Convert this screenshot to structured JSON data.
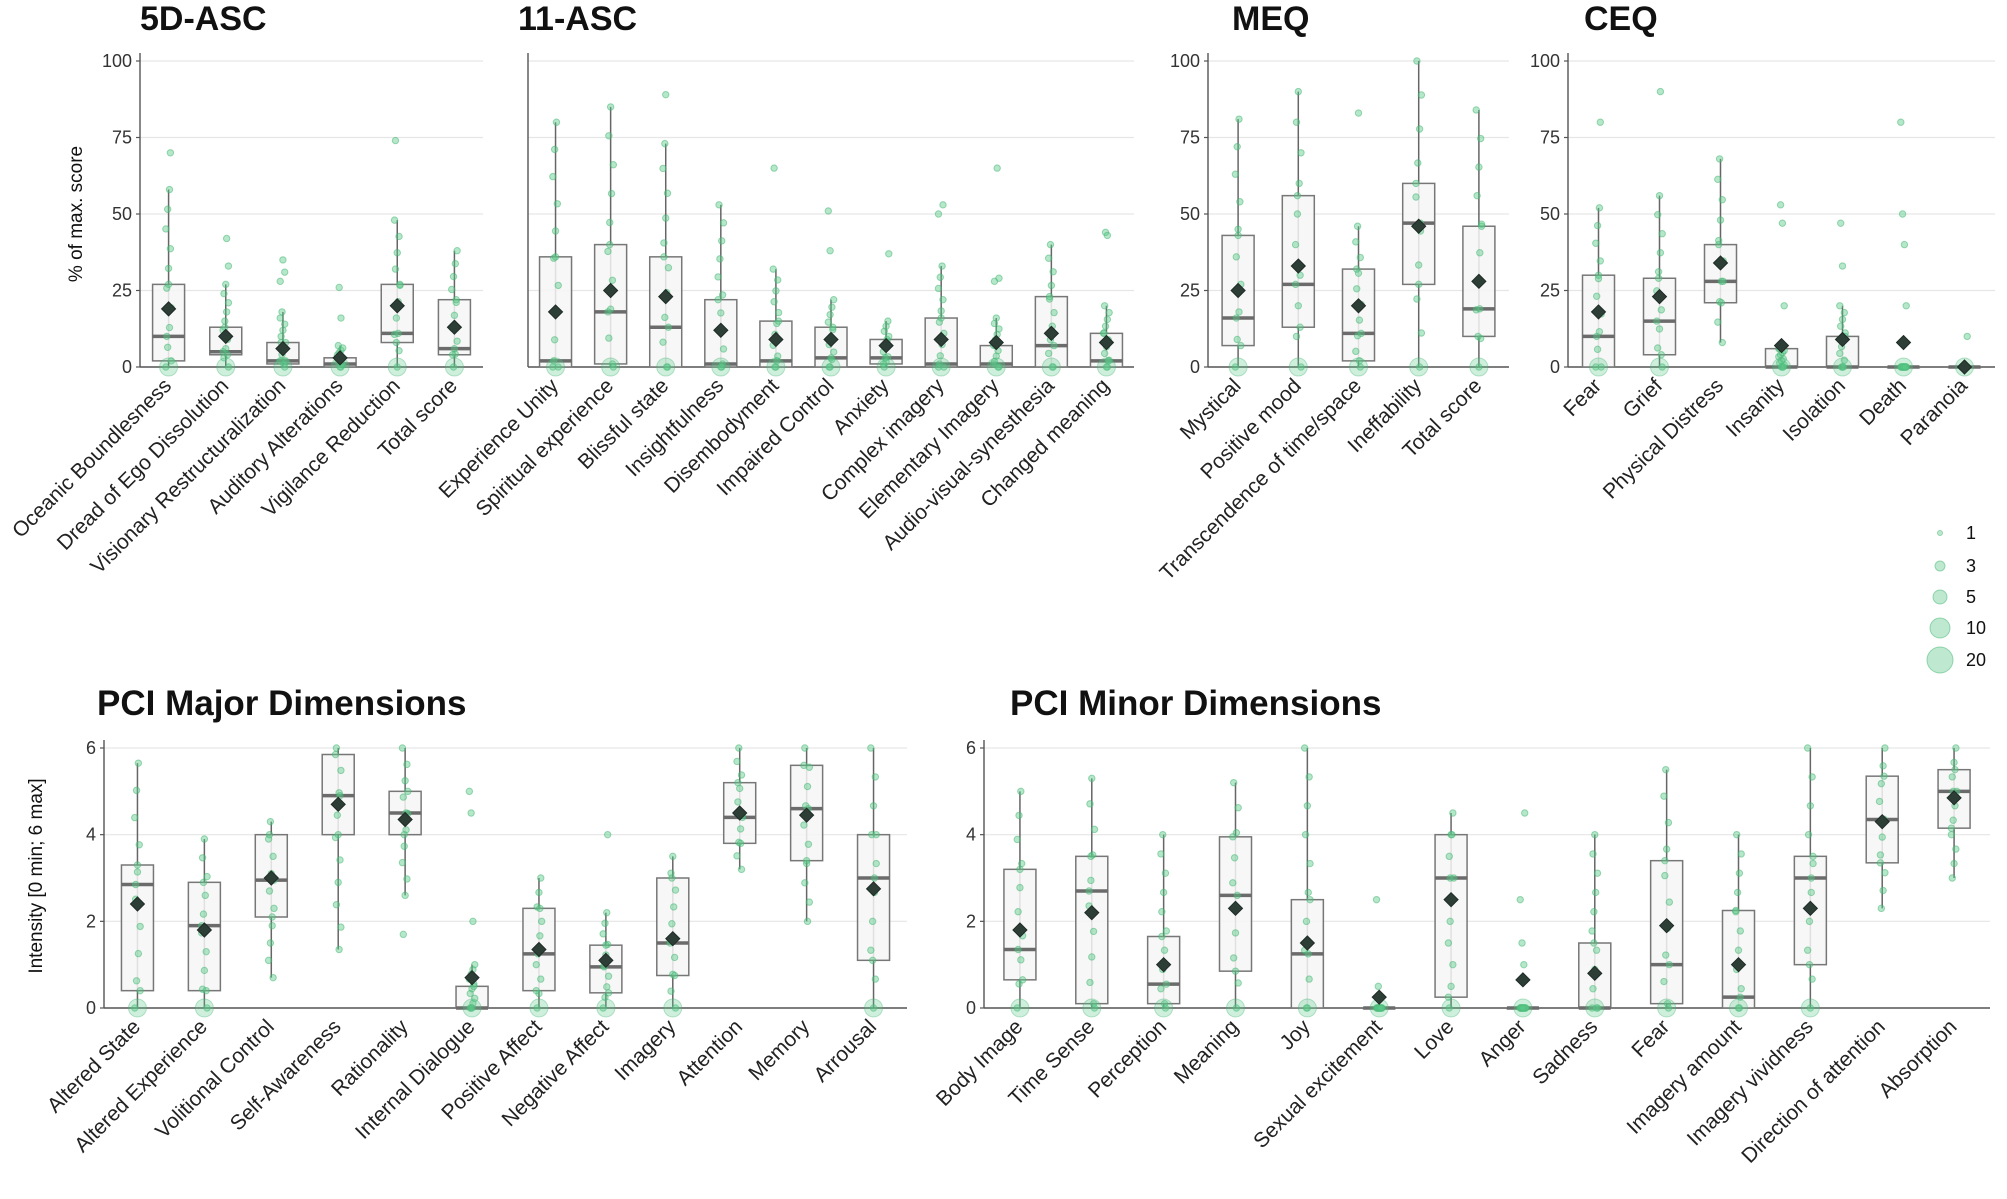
{
  "figure": {
    "legend": {
      "sizes": [
        1,
        3,
        5,
        10,
        20
      ],
      "labels": [
        "1",
        "3",
        "5",
        "10",
        "20"
      ]
    }
  },
  "chart_data": [
    {
      "type": "box",
      "title": "5D-ASC",
      "ylabel": "% of max. score",
      "ylim": [
        0,
        100
      ],
      "yticks": [
        0,
        25,
        50,
        75,
        100
      ],
      "categories": [
        "Oceanic Boundlesness",
        "Dread of Ego Dissolution",
        "Visionary Restructuralization",
        "Auditory Alterations",
        "Vigilance Reduction",
        "Total score"
      ],
      "boxes": [
        {
          "q1": 2,
          "median": 10,
          "q3": 27,
          "wlo": 0,
          "whi": 58,
          "mean": 19
        },
        {
          "q1": 4,
          "median": 5,
          "q3": 13,
          "wlo": 0,
          "whi": 27,
          "mean": 10
        },
        {
          "q1": 1,
          "median": 2,
          "q3": 8,
          "wlo": 0,
          "whi": 18,
          "mean": 6
        },
        {
          "q1": 0,
          "median": 1,
          "q3": 3,
          "wlo": 0,
          "whi": 7,
          "mean": 3
        },
        {
          "q1": 8,
          "median": 11,
          "q3": 27,
          "wlo": 0,
          "whi": 48,
          "mean": 20
        },
        {
          "q1": 4,
          "median": 6,
          "q3": 22,
          "wlo": 0,
          "whi": 38,
          "mean": 13
        }
      ],
      "outliers": [
        [
          70
        ],
        [
          42,
          33
        ],
        [
          35,
          31,
          28
        ],
        [
          26,
          16
        ],
        [
          74
        ],
        []
      ]
    },
    {
      "type": "box",
      "title": "11-ASC",
      "ylim": [
        0,
        100
      ],
      "yticks": [
        0,
        25,
        50,
        75,
        100
      ],
      "categories": [
        "Experience Unity",
        "Spiritual experience",
        "Blissful state",
        "Insightfulness",
        "Disembodyment",
        "Impaired Control",
        "Anxiety",
        "Complex imagery",
        "Elementary Imagery",
        "Audio-visual-synesthesia",
        "Changed meaning"
      ],
      "boxes": [
        {
          "q1": 0,
          "median": 2,
          "q3": 36,
          "wlo": 0,
          "whi": 80,
          "mean": 18
        },
        {
          "q1": 1,
          "median": 18,
          "q3": 40,
          "wlo": 0,
          "whi": 85,
          "mean": 25
        },
        {
          "q1": 0,
          "median": 13,
          "q3": 36,
          "wlo": 0,
          "whi": 73,
          "mean": 23
        },
        {
          "q1": 0,
          "median": 1,
          "q3": 22,
          "wlo": 0,
          "whi": 53,
          "mean": 12
        },
        {
          "q1": 0,
          "median": 2,
          "q3": 15,
          "wlo": 0,
          "whi": 32,
          "mean": 9
        },
        {
          "q1": 0,
          "median": 3,
          "q3": 13,
          "wlo": 0,
          "whi": 22,
          "mean": 9
        },
        {
          "q1": 1,
          "median": 3,
          "q3": 9,
          "wlo": 0,
          "whi": 15,
          "mean": 7
        },
        {
          "q1": 0,
          "median": 1,
          "q3": 16,
          "wlo": 0,
          "whi": 33,
          "mean": 9
        },
        {
          "q1": 0,
          "median": 1,
          "q3": 7,
          "wlo": 0,
          "whi": 16,
          "mean": 8
        },
        {
          "q1": 0,
          "median": 7,
          "q3": 23,
          "wlo": 0,
          "whi": 40,
          "mean": 11
        },
        {
          "q1": 0,
          "median": 2,
          "q3": 11,
          "wlo": 0,
          "whi": 20,
          "mean": 8
        }
      ],
      "outliers": [
        [],
        [],
        [
          89
        ],
        [],
        [
          65
        ],
        [
          51,
          38
        ],
        [
          37
        ],
        [
          53,
          50
        ],
        [
          65,
          29,
          28
        ],
        [],
        [
          44,
          43
        ]
      ]
    },
    {
      "type": "box",
      "title": "MEQ",
      "ylim": [
        0,
        100
      ],
      "yticks": [
        0,
        25,
        50,
        75,
        100
      ],
      "categories": [
        "Mystical",
        "Positive mood",
        "Transcendence of time/space",
        "Ineffability",
        "Total score"
      ],
      "boxes": [
        {
          "q1": 7,
          "median": 16,
          "q3": 43,
          "wlo": 0,
          "whi": 81,
          "mean": 25
        },
        {
          "q1": 13,
          "median": 27,
          "q3": 56,
          "wlo": 0,
          "whi": 90,
          "mean": 33
        },
        {
          "q1": 2,
          "median": 11,
          "q3": 32,
          "wlo": 0,
          "whi": 46,
          "mean": 20
        },
        {
          "q1": 27,
          "median": 47,
          "q3": 60,
          "wlo": 0,
          "whi": 100,
          "mean": 46
        },
        {
          "q1": 10,
          "median": 19,
          "q3": 46,
          "wlo": 0,
          "whi": 84,
          "mean": 28
        }
      ],
      "outliers": [
        [],
        [],
        [
          83
        ],
        [],
        []
      ]
    },
    {
      "type": "box",
      "title": "CEQ",
      "ylim": [
        0,
        100
      ],
      "yticks": [
        0,
        25,
        50,
        75,
        100
      ],
      "categories": [
        "Fear",
        "Grief",
        "Physical Distress",
        "Insanity",
        "Isolation",
        "Death",
        "Paranoia"
      ],
      "boxes": [
        {
          "q1": 0,
          "median": 10,
          "q3": 30,
          "wlo": 0,
          "whi": 52,
          "mean": 18
        },
        {
          "q1": 4,
          "median": 15,
          "q3": 29,
          "wlo": 0,
          "whi": 56,
          "mean": 23
        },
        {
          "q1": 21,
          "median": 28,
          "q3": 40,
          "wlo": 8,
          "whi": 68,
          "mean": 34
        },
        {
          "q1": 0,
          "median": 0,
          "q3": 6,
          "wlo": 0,
          "whi": 6,
          "mean": 7
        },
        {
          "q1": 0,
          "median": 0,
          "q3": 10,
          "wlo": 0,
          "whi": 20,
          "mean": 9
        },
        {
          "q1": 0,
          "median": 0,
          "q3": 0,
          "wlo": 0,
          "whi": 0,
          "mean": 8
        },
        {
          "q1": 0,
          "median": 0,
          "q3": 0,
          "wlo": 0,
          "whi": 0,
          "mean": 0
        }
      ],
      "outliers": [
        [
          80
        ],
        [
          90
        ],
        [],
        [
          53,
          47,
          20
        ],
        [
          47,
          33
        ],
        [
          80,
          50,
          40,
          20
        ],
        [
          10
        ]
      ]
    },
    {
      "type": "box",
      "title": "PCI Major Dimensions",
      "ylabel": "Intensity [0 min; 6 max]",
      "ylim": [
        0,
        6
      ],
      "yticks": [
        0,
        2,
        4,
        6
      ],
      "categories": [
        "Altered State",
        "Altered Experience",
        "Volitional Control",
        "Self-Awareness",
        "Rationality",
        "Internal Dialogue",
        "Positive Affect",
        "Negative Affect",
        "Imagery",
        "Attention",
        "Memory",
        "Arrousal"
      ],
      "boxes": [
        {
          "q1": 0.4,
          "median": 2.85,
          "q3": 3.3,
          "wlo": 0,
          "whi": 5.65,
          "mean": 2.4
        },
        {
          "q1": 0.4,
          "median": 1.9,
          "q3": 2.9,
          "wlo": 0,
          "whi": 3.9,
          "mean": 1.8
        },
        {
          "q1": 2.1,
          "median": 2.95,
          "q3": 4.0,
          "wlo": 0.7,
          "whi": 4.3,
          "mean": 3.0
        },
        {
          "q1": 4.0,
          "median": 4.9,
          "q3": 5.85,
          "wlo": 1.35,
          "whi": 6.0,
          "mean": 4.7
        },
        {
          "q1": 4.0,
          "median": 4.5,
          "q3": 5.0,
          "wlo": 2.6,
          "whi": 6.0,
          "mean": 4.35
        },
        {
          "q1": 0,
          "median": 0,
          "q3": 0.5,
          "wlo": 0,
          "whi": 1.0,
          "mean": 0.7
        },
        {
          "q1": 0.4,
          "median": 1.25,
          "q3": 2.3,
          "wlo": 0,
          "whi": 3.0,
          "mean": 1.35
        },
        {
          "q1": 0.35,
          "median": 0.95,
          "q3": 1.45,
          "wlo": 0,
          "whi": 2.2,
          "mean": 1.1
        },
        {
          "q1": 0.75,
          "median": 1.5,
          "q3": 3.0,
          "wlo": 0,
          "whi": 3.5,
          "mean": 1.6
        },
        {
          "q1": 3.8,
          "median": 4.4,
          "q3": 5.2,
          "wlo": 3.2,
          "whi": 6.0,
          "mean": 4.5
        },
        {
          "q1": 3.4,
          "median": 4.6,
          "q3": 5.6,
          "wlo": 2.0,
          "whi": 6.0,
          "mean": 4.45
        },
        {
          "q1": 1.1,
          "median": 3.0,
          "q3": 4.0,
          "wlo": 0,
          "whi": 6.0,
          "mean": 2.75
        }
      ],
      "outliers": [
        [],
        [],
        [],
        [],
        [
          1.7
        ],
        [
          5.0,
          4.5,
          2.0
        ],
        [],
        [
          4.0
        ],
        [],
        [],
        [],
        []
      ]
    },
    {
      "type": "box",
      "title": "PCI Minor Dimensions",
      "ylim": [
        0,
        6
      ],
      "yticks": [
        0,
        2,
        4,
        6
      ],
      "categories": [
        "Body Image",
        "Time Sense",
        "Perception",
        "Meaning",
        "Joy",
        "Sexual excitement",
        "Love",
        "Anger",
        "Sadness",
        "Fear",
        "Imagery amount",
        "Imagery vividness",
        "Direction of attention",
        "Absorption"
      ],
      "boxes": [
        {
          "q1": 0.65,
          "median": 1.35,
          "q3": 3.2,
          "wlo": 0,
          "whi": 5.0,
          "mean": 1.8
        },
        {
          "q1": 0.1,
          "median": 2.7,
          "q3": 3.5,
          "wlo": 0,
          "whi": 5.3,
          "mean": 2.2
        },
        {
          "q1": 0.1,
          "median": 0.55,
          "q3": 1.65,
          "wlo": 0,
          "whi": 4.0,
          "mean": 1.0
        },
        {
          "q1": 0.85,
          "median": 2.6,
          "q3": 3.95,
          "wlo": 0,
          "whi": 5.2,
          "mean": 2.3
        },
        {
          "q1": 0,
          "median": 1.25,
          "q3": 2.5,
          "wlo": 0,
          "whi": 6.0,
          "mean": 1.5
        },
        {
          "q1": 0,
          "median": 0,
          "q3": 0,
          "wlo": 0,
          "whi": 0,
          "mean": 0.25
        },
        {
          "q1": 0.25,
          "median": 3.0,
          "q3": 4.0,
          "wlo": 0,
          "whi": 4.5,
          "mean": 2.5
        },
        {
          "q1": 0,
          "median": 0,
          "q3": 0,
          "wlo": 0,
          "whi": 0,
          "mean": 0.65
        },
        {
          "q1": 0,
          "median": 0,
          "q3": 1.5,
          "wlo": 0,
          "whi": 4.0,
          "mean": 0.8
        },
        {
          "q1": 0.1,
          "median": 1.0,
          "q3": 3.4,
          "wlo": 0,
          "whi": 5.5,
          "mean": 1.9
        },
        {
          "q1": 0,
          "median": 0.25,
          "q3": 2.25,
          "wlo": 0,
          "whi": 4.0,
          "mean": 1.0
        },
        {
          "q1": 1.0,
          "median": 3.0,
          "q3": 3.5,
          "wlo": 0,
          "whi": 6.0,
          "mean": 2.3
        },
        {
          "q1": 3.35,
          "median": 4.35,
          "q3": 5.35,
          "wlo": 2.3,
          "whi": 6.0,
          "mean": 4.3
        },
        {
          "q1": 4.15,
          "median": 5.0,
          "q3": 5.5,
          "wlo": 3.0,
          "whi": 6.0,
          "mean": 4.85
        }
      ],
      "outliers": [
        [],
        [],
        [],
        [],
        [],
        [
          2.5,
          0.5
        ],
        [],
        [
          4.5,
          2.5,
          1.5,
          1.0
        ],
        [],
        [],
        [],
        [],
        [],
        []
      ]
    }
  ]
}
